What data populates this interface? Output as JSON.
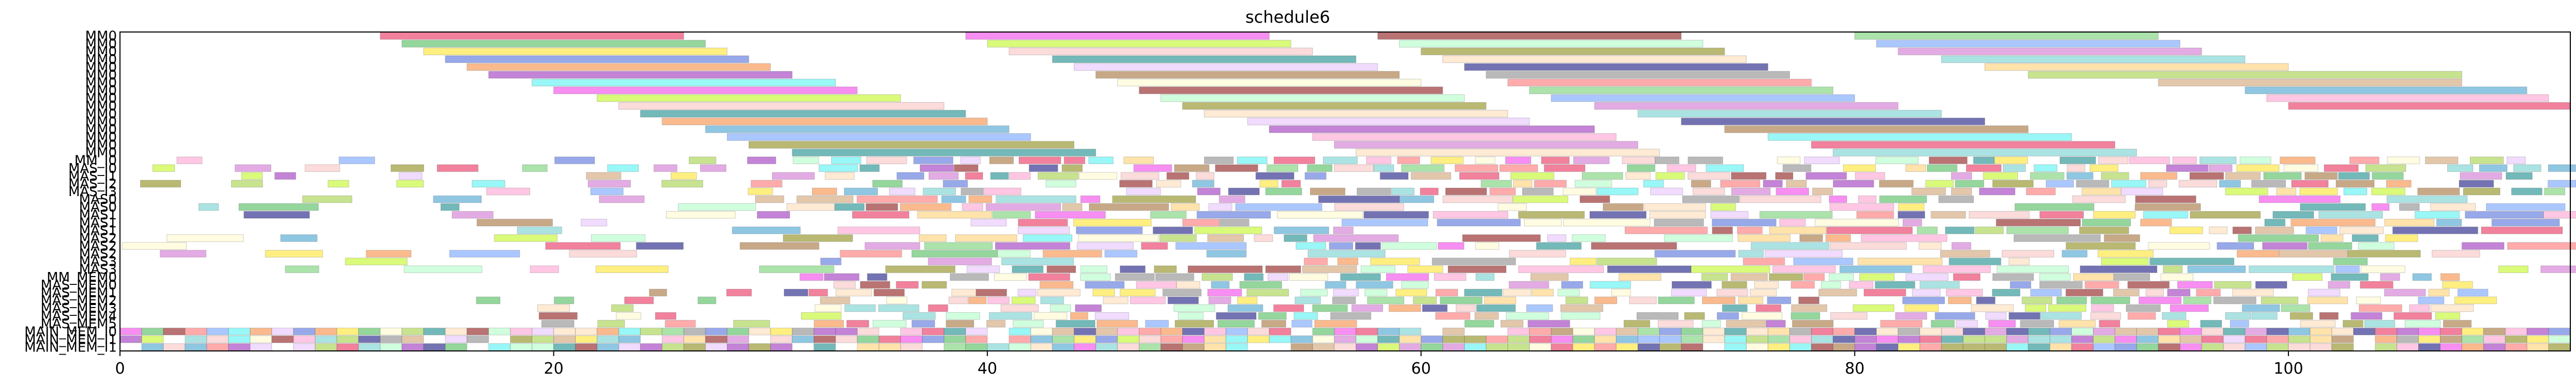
{
  "chart_data": {
    "type": "gantt",
    "title": "schedule6",
    "xlabel": "",
    "ylabel": "",
    "xlim": [
      0,
      113
    ],
    "grid": false,
    "legend": "none",
    "x_ticks": [
      0,
      20,
      40,
      60,
      80,
      100
    ],
    "x_tick_labels": [
      "0",
      "20",
      "40",
      "60",
      "80",
      "100"
    ],
    "rows": [
      "MM0",
      "MM0",
      "MM0",
      "MM0",
      "MM0",
      "MM0",
      "MM0",
      "MM0",
      "MM0",
      "MM0",
      "MM0",
      "MM0",
      "MM0",
      "MM0",
      "MM0",
      "MM0",
      "MM_I0",
      "MAS_I0",
      "MAS_I1",
      "MAS_I2",
      "MAS_I3",
      "MAS0",
      "MAS0",
      "MAS1",
      "MAS1",
      "MAS1",
      "MAS2",
      "MAS2",
      "MAS2",
      "MAS3",
      "MAS3",
      "MM_MEM0",
      "MAS_MEM0",
      "MAS_MEM1",
      "MAS_MEM2",
      "MAS_MEM3",
      "MAS_MEM4",
      "MAS_MEM5",
      "MAIN_MEM_I0",
      "MAIN_MEM_I1",
      "MAIN_MEM_I1"
    ],
    "row_labels_shown": [
      "MM0",
      "MM0",
      "MM0",
      "MM0",
      "MM0",
      "MM0",
      "MM0",
      "MM0",
      "MM0",
      "MM0",
      "MM0",
      "MM0",
      "MM0",
      "MM0",
      "MM0",
      "MM0",
      "MM_I0",
      "MAS_I0",
      "MAS_I1",
      "MAS_I2",
      "MAS_I3",
      "MAS0",
      "MAS0",
      "MAS1",
      "MAS1",
      "MAS1",
      "MAS2",
      "MAS2",
      "MAS2",
      "MAS3",
      "MAS3",
      "MM_MEM0",
      "MAS_MEM0",
      "MAS_MEM1",
      "MAS_MEM2",
      "MAS_MEM3",
      "MAS_MEM4",
      "MAS_MEM5",
      "MAIN_MEM_I0",
      "MAIN_MEM_I1",
      "MAIN_MEM_I1"
    ],
    "palette": [
      "#e6194b",
      "#3cb44b",
      "#ffe119",
      "#4363d8",
      "#f58231",
      "#911eb4",
      "#46f0f0",
      "#f032e6",
      "#bcf60c",
      "#fabebe",
      "#008080",
      "#e6beff",
      "#9a6324",
      "#fffac8",
      "#800000",
      "#aaffc3",
      "#808000",
      "#ffd8b1",
      "#000075",
      "#808080",
      "#ff6666",
      "#66cc66",
      "#6699ff",
      "#cc66cc",
      "#66cccc",
      "#ffcc66",
      "#99cc33",
      "#cc9966",
      "#3399cc",
      "#ff99cc"
    ],
    "bar_opacity": 0.55,
    "tasks": [
      {
        "row": 0,
        "start": 12,
        "end": 26
      },
      {
        "row": 0,
        "start": 39,
        "end": 53
      },
      {
        "row": 0,
        "start": 58,
        "end": 72
      },
      {
        "row": 0,
        "start": 80,
        "end": 94
      },
      {
        "row": 1,
        "start": 13,
        "end": 27
      },
      {
        "row": 1,
        "start": 40,
        "end": 54
      },
      {
        "row": 1,
        "start": 59,
        "end": 73
      },
      {
        "row": 1,
        "start": 81,
        "end": 95
      },
      {
        "row": 2,
        "start": 14,
        "end": 28
      },
      {
        "row": 2,
        "start": 41,
        "end": 55
      },
      {
        "row": 2,
        "start": 60,
        "end": 74
      },
      {
        "row": 2,
        "start": 82,
        "end": 96
      },
      {
        "row": 3,
        "start": 15,
        "end": 29
      },
      {
        "row": 3,
        "start": 43,
        "end": 57
      },
      {
        "row": 3,
        "start": 61,
        "end": 75
      },
      {
        "row": 3,
        "start": 84,
        "end": 98
      },
      {
        "row": 4,
        "start": 16,
        "end": 30
      },
      {
        "row": 4,
        "start": 44,
        "end": 58
      },
      {
        "row": 4,
        "start": 62,
        "end": 76
      },
      {
        "row": 4,
        "start": 86,
        "end": 100
      },
      {
        "row": 5,
        "start": 17,
        "end": 31
      },
      {
        "row": 5,
        "start": 45,
        "end": 59
      },
      {
        "row": 5,
        "start": 63,
        "end": 77
      },
      {
        "row": 5,
        "start": 88,
        "end": 108
      },
      {
        "row": 6,
        "start": 19,
        "end": 33
      },
      {
        "row": 6,
        "start": 46,
        "end": 60
      },
      {
        "row": 6,
        "start": 64,
        "end": 78
      },
      {
        "row": 6,
        "start": 94,
        "end": 108
      },
      {
        "row": 7,
        "start": 20,
        "end": 34
      },
      {
        "row": 7,
        "start": 47,
        "end": 61
      },
      {
        "row": 7,
        "start": 65,
        "end": 79
      },
      {
        "row": 7,
        "start": 98,
        "end": 111
      },
      {
        "row": 8,
        "start": 22,
        "end": 36
      },
      {
        "row": 8,
        "start": 48,
        "end": 62
      },
      {
        "row": 8,
        "start": 66,
        "end": 80
      },
      {
        "row": 8,
        "start": 99,
        "end": 112
      },
      {
        "row": 9,
        "start": 23,
        "end": 38
      },
      {
        "row": 9,
        "start": 49,
        "end": 63
      },
      {
        "row": 9,
        "start": 68,
        "end": 82
      },
      {
        "row": 9,
        "start": 100,
        "end": 113
      },
      {
        "row": 10,
        "start": 24,
        "end": 39
      },
      {
        "row": 10,
        "start": 50,
        "end": 64
      },
      {
        "row": 10,
        "start": 70,
        "end": 84
      },
      {
        "row": 11,
        "start": 25,
        "end": 40
      },
      {
        "row": 11,
        "start": 52,
        "end": 65
      },
      {
        "row": 11,
        "start": 72,
        "end": 86
      },
      {
        "row": 12,
        "start": 27,
        "end": 41
      },
      {
        "row": 12,
        "start": 53,
        "end": 68
      },
      {
        "row": 12,
        "start": 74,
        "end": 88
      },
      {
        "row": 13,
        "start": 28,
        "end": 42
      },
      {
        "row": 13,
        "start": 55,
        "end": 69
      },
      {
        "row": 13,
        "start": 76,
        "end": 90
      },
      {
        "row": 14,
        "start": 29,
        "end": 44
      },
      {
        "row": 14,
        "start": 56,
        "end": 70
      },
      {
        "row": 14,
        "start": 78,
        "end": 92
      },
      {
        "row": 15,
        "start": 31,
        "end": 45
      },
      {
        "row": 15,
        "start": 57,
        "end": 71
      },
      {
        "row": 15,
        "start": 79,
        "end": 93
      }
    ]
  }
}
